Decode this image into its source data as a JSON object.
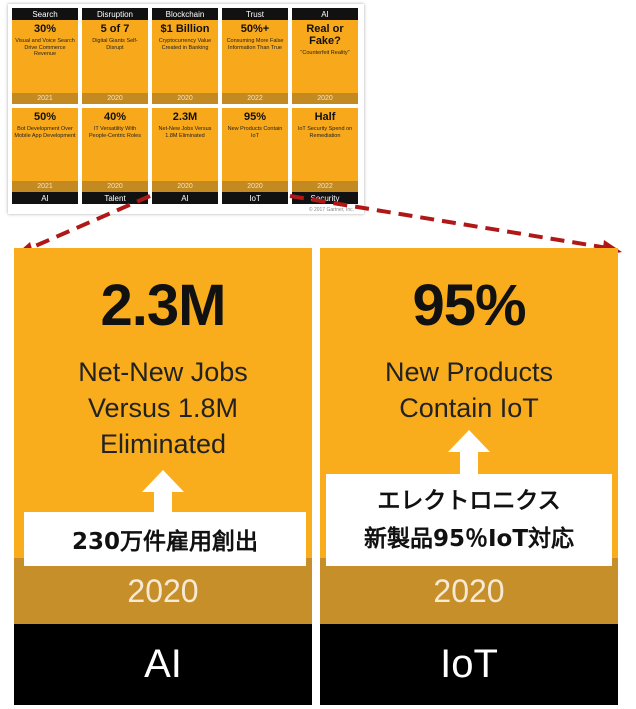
{
  "thumbnail": {
    "row1": [
      {
        "label": "Search",
        "stat": "30%",
        "desc": "Visual and Voice Search Drive Commerce Revenue",
        "year": "2021"
      },
      {
        "label": "Disruption",
        "stat": "5 of 7",
        "desc": "Digital Giants Self-Disrupt",
        "year": "2020"
      },
      {
        "label": "Blockchain",
        "stat": "$1 Billion",
        "desc": "Cryptocurrency Value Created in Banking",
        "year": "2020"
      },
      {
        "label": "Trust",
        "stat": "50%+",
        "desc": "Consuming More False Information Than True",
        "year": "2022"
      },
      {
        "label": "AI",
        "stat": "Real or Fake?",
        "desc": "\"Counterfeit Reality\"",
        "year": "2020"
      }
    ],
    "row2": [
      {
        "label": "AI",
        "stat": "50%",
        "desc": "Bot Development Over Mobile App Development",
        "year": "2021"
      },
      {
        "label": "Talent",
        "stat": "40%",
        "desc": "IT Versatility With People-Centric Roles",
        "year": "2020"
      },
      {
        "label": "AI",
        "stat": "2.3M",
        "desc": "Net-New Jobs Versus 1.8M Eliminated",
        "year": "2020"
      },
      {
        "label": "IoT",
        "stat": "95%",
        "desc": "New Products Contain IoT",
        "year": "2020"
      },
      {
        "label": "Security",
        "stat": "Half",
        "desc": "IoT Security Spend on Remediation",
        "year": "2022"
      }
    ],
    "copyright": "© 2017 Gartner, Inc."
  },
  "panels": {
    "left": {
      "stat": "2.3M",
      "desc_lines": [
        "Net-New Jobs",
        "Versus 1.8M",
        "Eliminated"
      ],
      "callout_lines": [
        "230万件雇用創出"
      ],
      "year": "2020",
      "category": "AI"
    },
    "right": {
      "stat": "95%",
      "desc_lines": [
        "New Products",
        "Contain IoT"
      ],
      "callout_lines": [
        "エレクトロニクス",
        "新製品95％IoT対応"
      ],
      "year": "2020",
      "category": "IoT"
    }
  },
  "colors": {
    "orange": "#f9ad1d",
    "year_bar": "#c68f2a",
    "label_bar": "#000000",
    "arrow": "#b01818"
  }
}
